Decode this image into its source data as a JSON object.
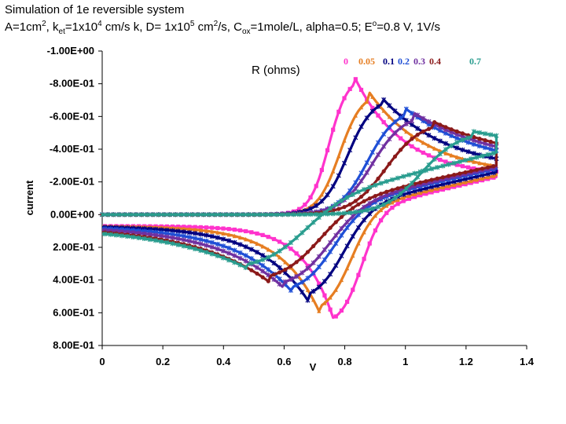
{
  "title": {
    "line1": "Simulation of 1e reversible system",
    "line2_parts": [
      {
        "text": "A=1cm",
        "style": "normal"
      },
      {
        "text": "2",
        "style": "sup"
      },
      {
        "text": ", k",
        "style": "normal"
      },
      {
        "text": "et",
        "style": "sub"
      },
      {
        "text": "=1x10",
        "style": "normal"
      },
      {
        "text": "4",
        "style": "sup"
      },
      {
        "text": " cm/s k, D= 1x10",
        "style": "normal"
      },
      {
        "text": "5",
        "style": "sup"
      },
      {
        "text": " cm",
        "style": "normal"
      },
      {
        "text": "2",
        "style": "sup"
      },
      {
        "text": "/s, C",
        "style": "normal"
      },
      {
        "text": "ox",
        "style": "sub"
      },
      {
        "text": "=1mole/L, alpha=0.5; E",
        "style": "normal"
      },
      {
        "text": "o",
        "style": "sup"
      },
      {
        "text": "=0.8 V, 1V/s",
        "style": "normal"
      }
    ]
  },
  "chart_data": {
    "type": "line",
    "xlabel": "V",
    "ylabel": "current",
    "legend_title": "R (ohms)",
    "legend_position": "top-right",
    "xlim": [
      0,
      1.4
    ],
    "ylim": [
      -1.0,
      0.8
    ],
    "y_reversed": true,
    "x_ticks": [
      "0",
      "0.2",
      "0.4",
      "0.6",
      "0.8",
      "1",
      "1.2",
      "1.4"
    ],
    "y_ticks": [
      "-1.00E+00",
      "-8.00E-01",
      "-6.00E-01",
      "-4.00E-01",
      "-2.00E-01",
      "0.00E+00",
      "2.00E-01",
      "4.00E-01",
      "6.00E-01",
      "8.00E-01"
    ],
    "grid": false,
    "series": [
      {
        "name": "0",
        "color": "#ff33cc",
        "marker": "square",
        "anodic_peak": {
          "x": 0.83,
          "y": -0.85
        },
        "cathodic_peak": {
          "x": 0.77,
          "y": 0.68
        },
        "end": {
          "x": 1.3,
          "y": -0.23
        }
      },
      {
        "name": "0.05",
        "color": "#e67e22",
        "marker": "triangle",
        "anodic_peak": {
          "x": 0.88,
          "y": -0.75
        },
        "cathodic_peak": {
          "x": 0.72,
          "y": 0.61
        },
        "end": {
          "x": 1.3,
          "y": -0.24
        }
      },
      {
        "name": "0.1",
        "color": "#000080",
        "marker": "cross",
        "anodic_peak": {
          "x": 0.92,
          "y": -0.72
        },
        "cathodic_peak": {
          "x": 0.68,
          "y": 0.53
        },
        "end": {
          "x": 1.3,
          "y": -0.26
        }
      },
      {
        "name": "0.2",
        "color": "#1f4fd6",
        "marker": "x",
        "anodic_peak": {
          "x": 1.0,
          "y": -0.65
        },
        "cathodic_peak": {
          "x": 0.63,
          "y": 0.48
        },
        "end": {
          "x": 1.3,
          "y": -0.28
        }
      },
      {
        "name": "0.3",
        "color": "#7030a0",
        "marker": "asterisk",
        "anodic_peak": {
          "x": 1.03,
          "y": -0.62
        },
        "cathodic_peak": {
          "x": 0.6,
          "y": 0.45
        },
        "end": {
          "x": 1.3,
          "y": -0.29
        }
      },
      {
        "name": "0.4",
        "color": "#8b1a1a",
        "marker": "circle",
        "anodic_peak": {
          "x": 1.09,
          "y": -0.57
        },
        "cathodic_peak": {
          "x": 0.55,
          "y": 0.41
        },
        "end": {
          "x": 1.3,
          "y": -0.3
        }
      },
      {
        "name": "0.7",
        "color": "#2a9d8f",
        "marker": "plus",
        "anodic_peak": {
          "x": 1.22,
          "y": -0.51
        },
        "cathodic_peak": {
          "x": 0.48,
          "y": 0.33
        },
        "end": {
          "x": 1.3,
          "y": -0.38
        }
      }
    ],
    "legend_entries": [
      {
        "label": "0",
        "color": "#ff33cc"
      },
      {
        "label": "0.05",
        "color": "#e67e22"
      },
      {
        "label": "0.1",
        "color": "#000080"
      },
      {
        "label": "0.2",
        "color": "#1f4fd6"
      },
      {
        "label": "0.3",
        "color": "#7030a0"
      },
      {
        "label": "0.4",
        "color": "#8b1a1a"
      },
      {
        "label": "0.7",
        "color": "#2a9d8f"
      }
    ]
  }
}
